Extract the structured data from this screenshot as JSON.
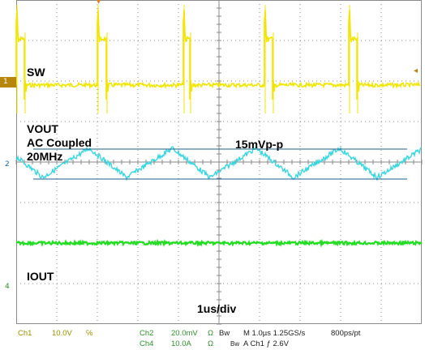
{
  "colors": {
    "ch1": "#f2e600",
    "ch2": "#39d6e0",
    "ch4": "#22dd22",
    "grid": "#8a8a8a",
    "measure_line": "#1d5f8c",
    "status_yellow": "#9a8e00",
    "status_green": "#2f8f2f",
    "status_black": "#222222",
    "ch1_badge_bg": "#b8860b"
  },
  "labels": {
    "sw": "SW",
    "vout": "VOUT",
    "ac_coupled": "AC Coupled",
    "bw": "20MHz",
    "p2p": "15mVp-p",
    "iout": "IOUT",
    "timebase": "1us/div"
  },
  "markers": {
    "ch1": "1",
    "ch2": "2",
    "ch4": "4",
    "trigger_level": "◂",
    "trigger_pos": "▾"
  },
  "status": {
    "ch1_name": "Ch1",
    "ch1_scale": "10.0V",
    "ch1_unit": "℅",
    "ch2_name": "Ch2",
    "ch2_scale": "20.0mV",
    "ch2_unit": "Ω",
    "bw_mark": "Bw",
    "ch4_name": "Ch4",
    "ch4_scale": "10.0A",
    "ch4_unit": "Ω",
    "bw_mark2": "Bw",
    "time_scale": "M 1.0µs 1.25GS/s",
    "sample_rate": "800ps/pt",
    "trigger": "A  Ch1  ƒ  2.6V"
  }
}
